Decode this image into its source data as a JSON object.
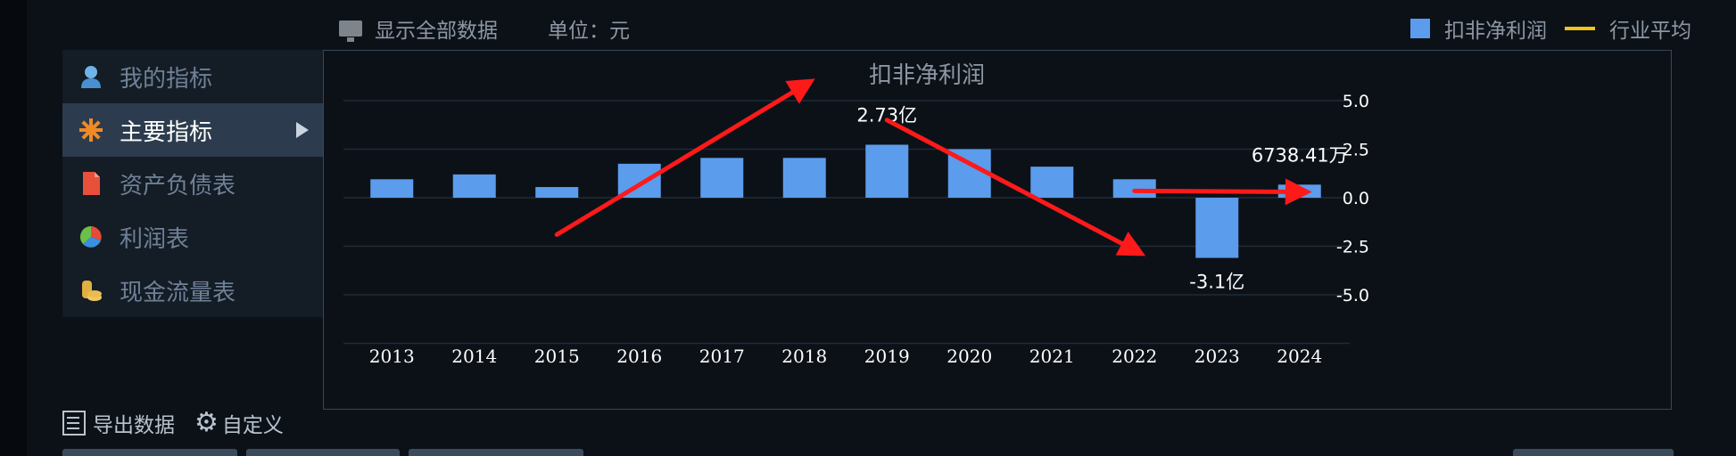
{
  "toolbar": {
    "show_all_label": "显示全部数据",
    "unit_label": "单位：元"
  },
  "legend": {
    "bar_label": "扣非净利润",
    "line_label": "行业平均",
    "bar_color": "#5b9cec",
    "line_color": "#f0c419"
  },
  "sidebar": {
    "items": [
      {
        "label": "我的指标",
        "icon": "user-icon"
      },
      {
        "label": "主要指标",
        "icon": "star-icon"
      },
      {
        "label": "资产负债表",
        "icon": "document-icon"
      },
      {
        "label": "利润表",
        "icon": "pie-chart-icon"
      },
      {
        "label": "现金流量表",
        "icon": "coins-icon"
      }
    ],
    "active_index": 1
  },
  "bottom": {
    "export_label": "导出数据",
    "custom_label": "自定义"
  },
  "chart_data": {
    "type": "bar",
    "title": "扣非净利润",
    "xlabel": "",
    "ylabel": "",
    "categories": [
      "2013",
      "2014",
      "2015",
      "2016",
      "2017",
      "2018",
      "2019",
      "2020",
      "2021",
      "2022",
      "2023",
      "2024"
    ],
    "series": [
      {
        "name": "扣非净利润",
        "unit": "亿",
        "values": [
          0.95,
          1.2,
          0.55,
          1.75,
          2.05,
          2.05,
          2.73,
          2.5,
          1.6,
          0.95,
          -3.1,
          0.6738
        ]
      }
    ],
    "data_labels": [
      {
        "category": "2019",
        "text": "2.73亿"
      },
      {
        "category": "2023",
        "text": "-3.1亿"
      },
      {
        "category": "2024",
        "text": "6738.41万"
      }
    ],
    "yticks": [
      "5.0",
      "2.5",
      "0.0",
      "-2.5",
      "-5.0"
    ],
    "ylim": [
      -7.5,
      7.5
    ],
    "grid": true,
    "annotations": [
      {
        "type": "arrow",
        "color": "#ff1a1a",
        "from": [
          "2015",
          -1.9
        ],
        "to": [
          "2018",
          5.8
        ]
      },
      {
        "type": "arrow",
        "color": "#ff1a1a",
        "from": [
          "2019",
          4.0
        ],
        "to": [
          "2022",
          -2.7
        ]
      },
      {
        "type": "arrow",
        "color": "#ff1a1a",
        "from": [
          "2022",
          0.35
        ],
        "to": [
          "2024",
          0.3
        ]
      }
    ]
  }
}
